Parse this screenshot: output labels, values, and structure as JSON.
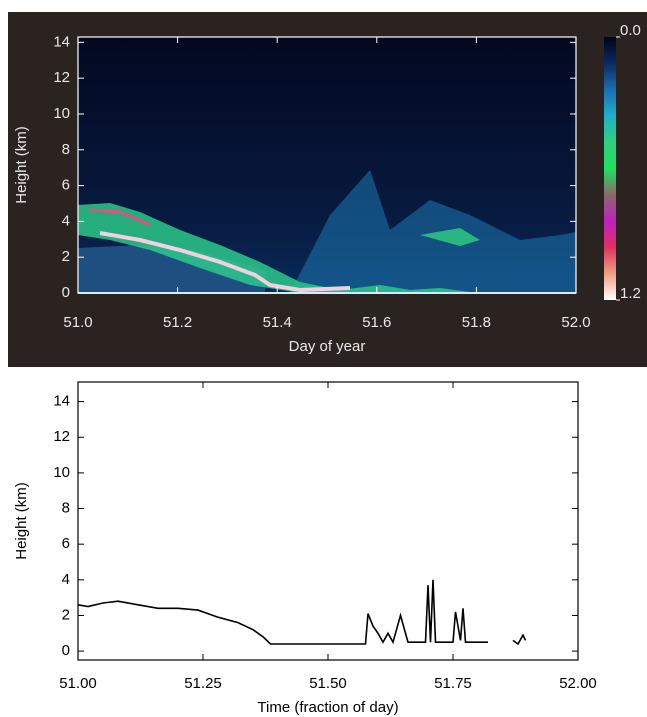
{
  "chart_data": [
    {
      "type": "heatmap",
      "xlabel": "Day of year",
      "ylabel": "Height (km)",
      "xlim": [
        51.0,
        52.0
      ],
      "ylim": [
        0,
        14.3
      ],
      "xticks": [
        {
          "value": 51.0,
          "label": "51.0"
        },
        51.2,
        51.4,
        51.6,
        51.8,
        {
          "value": 52.0,
          "label": "52.0"
        }
      ],
      "yticks": [
        0,
        2,
        4,
        6,
        8,
        10,
        12,
        14
      ],
      "colorbar": {
        "lim": [
          0,
          1.2
        ],
        "ticks": [
          {
            "value": 0,
            "label": "0.0"
          },
          1.2
        ],
        "colors": [
          "#02031a",
          "#0a2a60",
          "#1a6fb0",
          "#20b0c8",
          "#30d080",
          "#20e060",
          "#8a6a6a",
          "#c020c0",
          "#e03060",
          "#f0a080",
          "#ffffff"
        ]
      }
    },
    {
      "type": "line",
      "xlabel": "Time (fraction of day)",
      "ylabel": "Height (km)",
      "xlim": [
        51.0,
        52.0
      ],
      "ylim": [
        -0.5,
        15.1
      ],
      "xticks": [
        {
          "value": 51.0,
          "label": "51.00"
        },
        51.25,
        {
          "value": 51.5,
          "label": "51.50"
        },
        51.75,
        {
          "value": 52.0,
          "label": "52.00"
        }
      ],
      "yticks": [
        0,
        2,
        4,
        6,
        8,
        10,
        12,
        14
      ],
      "color": "#000000",
      "x": [
        51.0,
        51.02,
        51.05,
        51.08,
        51.12,
        51.16,
        51.2,
        51.24,
        51.28,
        51.32,
        51.35,
        51.37,
        51.385,
        51.45,
        51.5,
        51.55,
        51.575,
        51.58,
        51.59,
        51.6,
        51.61,
        51.62,
        51.63,
        51.645,
        51.66,
        51.695,
        51.7,
        51.705,
        51.71,
        51.715,
        51.75,
        51.755,
        51.76,
        51.765,
        51.77,
        51.775,
        51.82,
        51.83,
        51.84,
        51.85,
        51.87,
        51.88,
        51.89,
        51.895
      ],
      "values": [
        2.6,
        2.5,
        2.7,
        2.8,
        2.6,
        2.4,
        2.4,
        2.3,
        1.9,
        1.6,
        1.2,
        0.8,
        0.4,
        0.4,
        0.4,
        0.4,
        0.4,
        2.1,
        1.4,
        1.0,
        0.5,
        1.0,
        0.5,
        2.0,
        0.5,
        0.5,
        3.7,
        0.5,
        4.0,
        0.5,
        0.5,
        2.2,
        1.4,
        0.6,
        2.4,
        0.5,
        0.5,
        null,
        0.6,
        null,
        0.6,
        0.4,
        0.9,
        0.6
      ]
    }
  ]
}
